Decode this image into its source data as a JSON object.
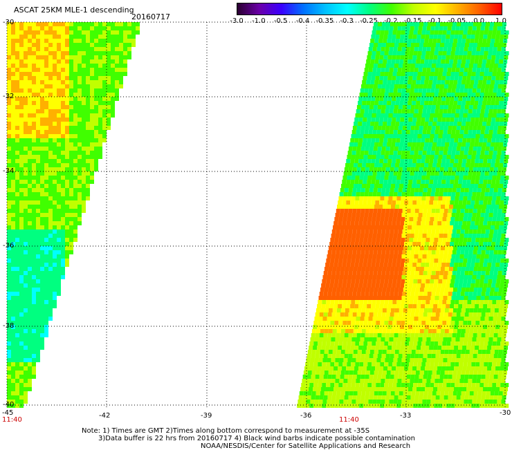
{
  "header": {
    "title": "ASCAT 25KM MLE-1 descending",
    "date": "20160717"
  },
  "colorbar": {
    "tick_labels": [
      "-3.0",
      "-1.0",
      "-0.5",
      "-0.4",
      "-0.35",
      "-0.3",
      "-0.25",
      "-0.2",
      "-0.15",
      "-0.1",
      "-0.05",
      "0.0",
      "1.0"
    ],
    "colors": [
      "#2a0030",
      "#6a00a8",
      "#3a00ff",
      "#0070ff",
      "#00c0ff",
      "#00ffff",
      "#00ff80",
      "#40ff00",
      "#c0ff00",
      "#ffff00",
      "#ffb000",
      "#ff6000",
      "#ff0000"
    ]
  },
  "map": {
    "lat_labels": [
      "-30",
      "-32",
      "-34",
      "-36",
      "-38",
      "-40"
    ],
    "lon_labels": [
      "-45",
      "-42",
      "-39",
      "-36",
      "-33",
      "-30"
    ],
    "time_labels": [
      "11:40",
      "11:40"
    ]
  },
  "notes": {
    "line1": "Note: 1) Times are GMT 2)Times along bottom correspond to measurement at -35S",
    "line2": "3)Data buffer is 22 hrs from 20160717 4) Black wind barbs indicate possible contamination",
    "line3": "NOAA/NESDIS/Center for Satellite Applications and Research"
  }
}
